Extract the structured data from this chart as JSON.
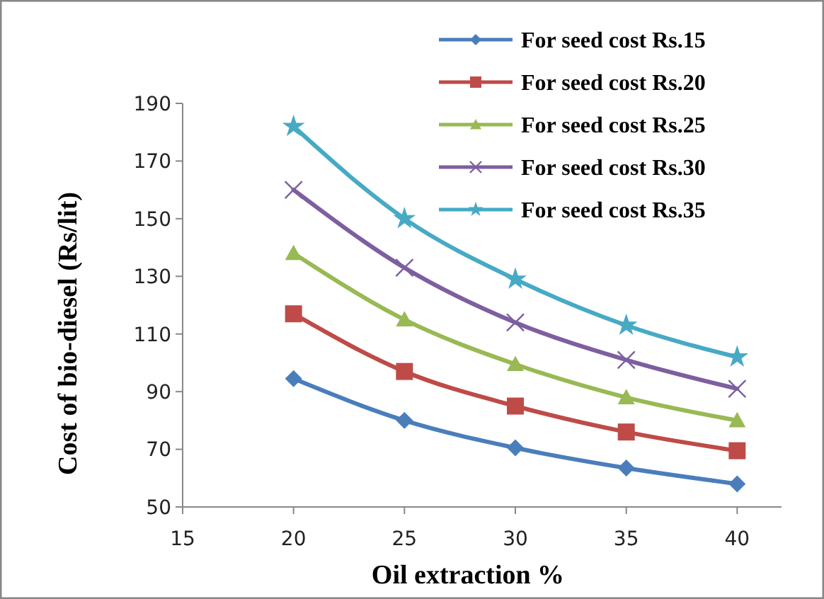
{
  "chart_data": {
    "type": "line",
    "xlabel": "Oil extraction %",
    "ylabel": "Cost of bio-diesel (Rs/lit)",
    "x": [
      20,
      25,
      30,
      35,
      40
    ],
    "xlim": [
      15,
      42
    ],
    "xticks": [
      15,
      20,
      25,
      30,
      35,
      40
    ],
    "ylim": [
      50,
      190
    ],
    "yticks": [
      50,
      70,
      90,
      110,
      130,
      150,
      170,
      190
    ],
    "grid": false,
    "legend": "top right",
    "line_style": "solid",
    "series": [
      {
        "name": "For seed cost Rs.15",
        "color": "#4a7ebb",
        "marker": "diamond",
        "values": [
          94.5,
          80,
          70.5,
          63.5,
          58
        ]
      },
      {
        "name": "For seed cost Rs.20",
        "color": "#be4b48",
        "marker": "square",
        "values": [
          117,
          97,
          85,
          76,
          69.5
        ]
      },
      {
        "name": "For seed cost Rs.25",
        "color": "#98b954",
        "marker": "triangle",
        "values": [
          138,
          115,
          99.5,
          88,
          80
        ]
      },
      {
        "name": "For seed cost Rs.30",
        "color": "#7d5fa0",
        "marker": "cross",
        "values": [
          160,
          133,
          114,
          101,
          91
        ]
      },
      {
        "name": "For seed cost Rs.35",
        "color": "#46aac5",
        "marker": "star",
        "values": [
          182,
          150,
          129,
          113,
          102
        ]
      }
    ]
  }
}
